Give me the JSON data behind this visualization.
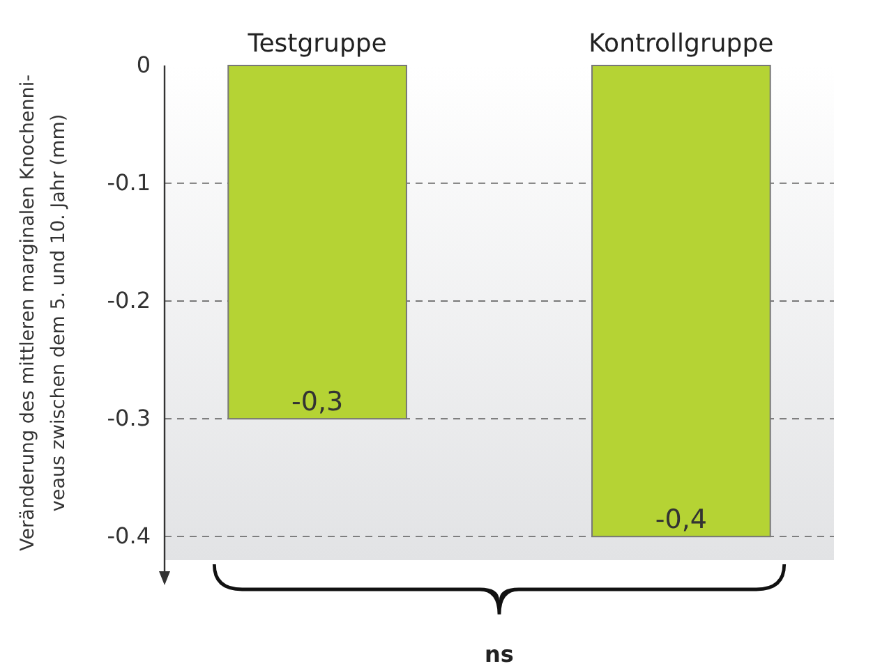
{
  "chart_data": {
    "type": "bar",
    "ylabel": "Veränderung des mittleren marginalen Knochenni-\nveaus zwischen dem 5. und 10. Jahr (mm)",
    "categories": [
      "Testgruppe",
      "Kontrollgruppe"
    ],
    "values": [
      -0.3,
      -0.4
    ],
    "value_labels": [
      "-0,3",
      "-0,4"
    ],
    "color": "#b5d334",
    "ylim": [
      -0.42,
      0
    ],
    "yticks": [
      0,
      -0.1,
      -0.2,
      -0.3,
      -0.4
    ],
    "grid": "y",
    "annotations": [
      "ns"
    ]
  }
}
